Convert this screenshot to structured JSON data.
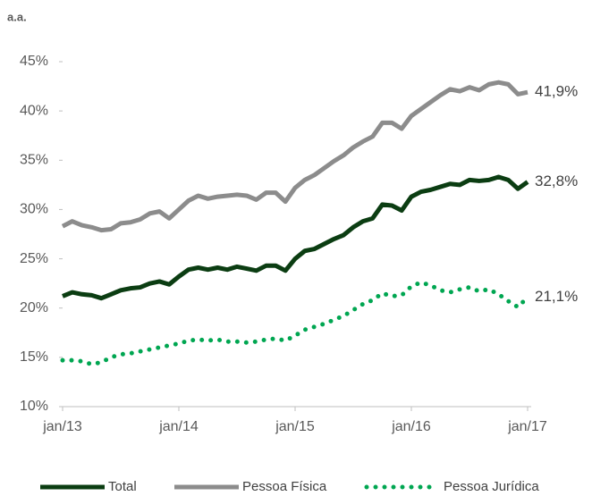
{
  "chart_data": {
    "type": "line",
    "y_label": "a.a.",
    "categories": [
      "jan/13",
      null,
      null,
      null,
      null,
      null,
      null,
      null,
      null,
      null,
      null,
      null,
      "jan/14",
      null,
      null,
      null,
      null,
      null,
      null,
      null,
      null,
      null,
      null,
      null,
      "jan/15",
      null,
      null,
      null,
      null,
      null,
      null,
      null,
      null,
      null,
      null,
      null,
      "jan/16",
      null,
      null,
      null,
      null,
      null,
      null,
      null,
      null,
      null,
      null,
      null,
      "jan/17"
    ],
    "series": [
      {
        "name": "Total",
        "color": "#0b3d12",
        "style": "solid",
        "values": [
          21.2,
          21.6,
          21.4,
          21.3,
          21.0,
          21.4,
          21.8,
          22.0,
          22.1,
          22.5,
          22.7,
          22.4,
          23.2,
          23.9,
          24.1,
          23.9,
          24.1,
          23.9,
          24.2,
          24.0,
          23.8,
          24.3,
          24.3,
          23.8,
          25.0,
          25.8,
          26.0,
          26.5,
          27.0,
          27.4,
          28.2,
          28.8,
          29.1,
          30.5,
          30.4,
          29.9,
          31.3,
          31.8,
          32.0,
          32.3,
          32.6,
          32.5,
          33.0,
          32.9,
          33.0,
          33.3,
          33.0,
          32.1,
          32.8
        ],
        "value_labels": [
          null,
          null,
          null,
          null,
          null,
          null,
          null,
          null,
          null,
          null,
          null,
          null,
          null,
          null,
          null,
          null,
          null,
          null,
          null,
          null,
          null,
          null,
          null,
          null,
          null,
          null,
          null,
          null,
          null,
          null,
          null,
          null,
          null,
          null,
          null,
          null,
          null,
          null,
          null,
          null,
          null,
          null,
          null,
          null,
          null,
          null,
          null,
          null,
          "32,8%"
        ]
      },
      {
        "name": "Pessoa Física",
        "color": "#8c8c8c",
        "style": "solid",
        "values": [
          28.3,
          28.8,
          28.4,
          28.2,
          27.9,
          28.0,
          28.6,
          28.7,
          29.0,
          29.6,
          29.8,
          29.1,
          30.0,
          30.9,
          31.4,
          31.1,
          31.3,
          31.4,
          31.5,
          31.4,
          31.0,
          31.7,
          31.7,
          30.8,
          32.2,
          33.0,
          33.5,
          34.2,
          34.9,
          35.5,
          36.3,
          36.9,
          37.4,
          38.8,
          38.8,
          38.2,
          39.5,
          40.2,
          40.9,
          41.6,
          42.2,
          42.0,
          42.4,
          42.1,
          42.7,
          42.9,
          42.7,
          41.7,
          41.9
        ],
        "value_labels": [
          null,
          null,
          null,
          null,
          null,
          null,
          null,
          null,
          null,
          null,
          null,
          null,
          null,
          null,
          null,
          null,
          null,
          null,
          null,
          null,
          null,
          null,
          null,
          null,
          null,
          null,
          null,
          null,
          null,
          null,
          null,
          null,
          null,
          null,
          null,
          null,
          null,
          null,
          null,
          null,
          null,
          null,
          null,
          null,
          null,
          null,
          null,
          null,
          "41,9%"
        ]
      },
      {
        "name": "Pessoa Jurídica",
        "color": "#00a651",
        "style": "dotted",
        "values": [
          14.7,
          14.7,
          14.6,
          14.3,
          14.5,
          15.0,
          15.3,
          15.4,
          15.6,
          15.8,
          16.0,
          16.2,
          16.4,
          16.7,
          16.8,
          16.7,
          16.8,
          16.6,
          16.6,
          16.5,
          16.6,
          16.8,
          16.9,
          16.7,
          17.2,
          17.8,
          18.1,
          18.4,
          18.8,
          19.2,
          19.8,
          20.4,
          20.8,
          21.5,
          21.2,
          21.3,
          22.2,
          22.6,
          22.3,
          21.8,
          21.6,
          21.9,
          22.1,
          21.7,
          21.9,
          21.4,
          20.7,
          20.1,
          21.1
        ],
        "value_labels": [
          null,
          null,
          null,
          null,
          null,
          null,
          null,
          null,
          null,
          null,
          null,
          null,
          null,
          null,
          null,
          null,
          null,
          null,
          null,
          null,
          null,
          null,
          null,
          null,
          null,
          null,
          null,
          null,
          null,
          null,
          null,
          null,
          null,
          null,
          null,
          null,
          null,
          null,
          null,
          null,
          null,
          null,
          null,
          null,
          null,
          null,
          null,
          null,
          "21,1%"
        ]
      }
    ],
    "ylim": [
      10,
      45
    ],
    "yticks": [
      {
        "value": 10,
        "label": "10%"
      },
      {
        "value": 15,
        "label": "15%"
      },
      {
        "value": 20,
        "label": "20%"
      },
      {
        "value": 25,
        "label": "25%"
      },
      {
        "value": 30,
        "label": "30%"
      },
      {
        "value": 35,
        "label": "35%"
      },
      {
        "value": 40,
        "label": "40%"
      },
      {
        "value": 45,
        "label": "45%"
      }
    ],
    "grid": false,
    "legend": "bottom"
  }
}
